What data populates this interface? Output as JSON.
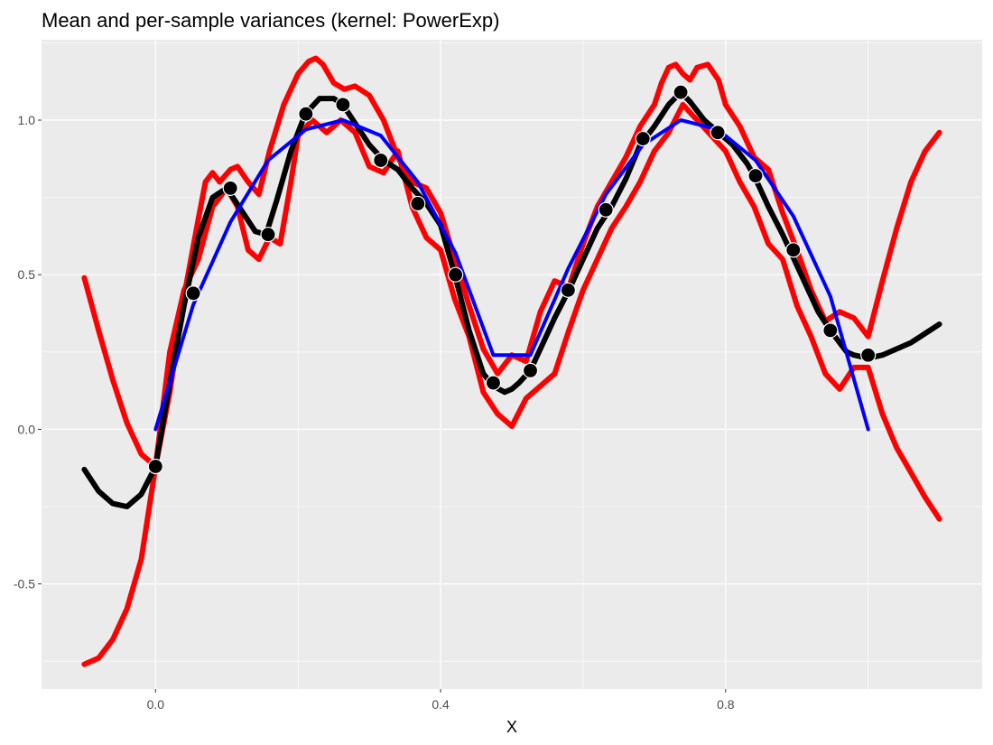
{
  "chart_data": {
    "type": "line",
    "title": "Mean and per-sample variances (kernel: PowerExp)",
    "xlabel": "X",
    "ylabel": "",
    "xlim": [
      -0.16,
      1.16
    ],
    "ylim": [
      -0.84,
      1.26
    ],
    "x_ticks": [
      0.0,
      0.4,
      0.8
    ],
    "x_tick_labels": [
      "0.0",
      "0.4",
      "0.8"
    ],
    "y_ticks": [
      -0.5,
      0.0,
      0.5,
      1.0
    ],
    "y_tick_labels": [
      "-0.5",
      "0.0",
      "0.5",
      "1.0"
    ],
    "grid": true,
    "legend": "none",
    "colors": {
      "panel": "#ebebeb",
      "grid": "#ffffff",
      "mean": "#000000",
      "variance_bounds": "#ff0000",
      "true_function": "#0000ff",
      "samples": "#000000"
    },
    "series": [
      {
        "key": "upper",
        "color": "#ff0000",
        "x": [
          -0.1,
          -0.08,
          -0.06,
          -0.04,
          -0.02,
          0.0,
          0.02,
          0.04,
          0.06,
          0.07,
          0.08,
          0.09,
          0.105,
          0.115,
          0.13,
          0.145,
          0.16,
          0.18,
          0.2,
          0.215,
          0.225,
          0.235,
          0.25,
          0.265,
          0.28,
          0.3,
          0.32,
          0.34,
          0.36,
          0.38,
          0.4,
          0.42,
          0.44,
          0.46,
          0.48,
          0.5,
          0.52,
          0.54,
          0.56,
          0.58,
          0.6,
          0.62,
          0.64,
          0.66,
          0.68,
          0.7,
          0.71,
          0.72,
          0.73,
          0.74,
          0.75,
          0.76,
          0.775,
          0.79,
          0.8,
          0.82,
          0.84,
          0.86,
          0.88,
          0.9,
          0.92,
          0.94,
          0.96,
          0.98,
          1.0,
          1.02,
          1.04,
          1.06,
          1.08,
          1.1
        ],
        "y": [
          0.49,
          0.32,
          0.16,
          0.02,
          -0.08,
          -0.12,
          0.12,
          0.43,
          0.68,
          0.8,
          0.83,
          0.8,
          0.84,
          0.85,
          0.8,
          0.76,
          0.9,
          1.05,
          1.15,
          1.19,
          1.2,
          1.18,
          1.12,
          1.1,
          1.11,
          1.08,
          1.0,
          0.88,
          0.8,
          0.78,
          0.7,
          0.55,
          0.4,
          0.26,
          0.18,
          0.24,
          0.22,
          0.38,
          0.48,
          0.46,
          0.6,
          0.72,
          0.8,
          0.88,
          0.98,
          1.05,
          1.12,
          1.17,
          1.18,
          1.15,
          1.13,
          1.17,
          1.18,
          1.13,
          1.05,
          0.98,
          0.88,
          0.84,
          0.7,
          0.58,
          0.45,
          0.35,
          0.38,
          0.36,
          0.3,
          0.48,
          0.65,
          0.8,
          0.9,
          0.96
        ]
      },
      {
        "key": "lower",
        "color": "#ff0000",
        "x": [
          -0.1,
          -0.08,
          -0.06,
          -0.04,
          -0.02,
          0.0,
          0.02,
          0.04,
          0.06,
          0.08,
          0.1,
          0.115,
          0.13,
          0.145,
          0.16,
          0.175,
          0.19,
          0.2,
          0.22,
          0.24,
          0.26,
          0.28,
          0.3,
          0.32,
          0.34,
          0.36,
          0.38,
          0.4,
          0.42,
          0.44,
          0.46,
          0.48,
          0.5,
          0.52,
          0.54,
          0.56,
          0.58,
          0.6,
          0.62,
          0.64,
          0.66,
          0.68,
          0.7,
          0.72,
          0.74,
          0.76,
          0.78,
          0.8,
          0.82,
          0.84,
          0.86,
          0.88,
          0.9,
          0.92,
          0.94,
          0.96,
          0.98,
          1.0,
          1.02,
          1.04,
          1.06,
          1.08,
          1.1
        ],
        "y": [
          -0.76,
          -0.74,
          -0.68,
          -0.58,
          -0.42,
          -0.12,
          0.25,
          0.45,
          0.55,
          0.72,
          0.78,
          0.72,
          0.58,
          0.55,
          0.62,
          0.6,
          0.8,
          0.95,
          1.0,
          0.96,
          1.0,
          0.96,
          0.85,
          0.83,
          0.9,
          0.72,
          0.62,
          0.58,
          0.42,
          0.3,
          0.12,
          0.05,
          0.01,
          0.1,
          0.14,
          0.18,
          0.32,
          0.45,
          0.55,
          0.65,
          0.72,
          0.8,
          0.9,
          0.96,
          1.05,
          1.0,
          0.95,
          0.9,
          0.8,
          0.72,
          0.6,
          0.55,
          0.4,
          0.3,
          0.18,
          0.13,
          0.2,
          0.2,
          0.05,
          -0.06,
          -0.14,
          -0.22,
          -0.29
        ]
      },
      {
        "key": "mean",
        "color": "#000000",
        "x": [
          -0.1,
          -0.08,
          -0.06,
          -0.04,
          -0.02,
          0.0,
          0.02,
          0.04,
          0.06,
          0.08,
          0.1,
          0.12,
          0.14,
          0.155,
          0.17,
          0.19,
          0.21,
          0.23,
          0.25,
          0.263,
          0.28,
          0.3,
          0.32,
          0.34,
          0.36,
          0.38,
          0.4,
          0.42,
          0.44,
          0.46,
          0.474,
          0.49,
          0.5,
          0.51,
          0.526,
          0.54,
          0.56,
          0.58,
          0.6,
          0.62,
          0.64,
          0.66,
          0.68,
          0.7,
          0.72,
          0.737,
          0.75,
          0.77,
          0.79,
          0.81,
          0.83,
          0.84,
          0.86,
          0.88,
          0.89,
          0.91,
          0.93,
          0.947,
          0.96,
          0.97,
          0.98,
          1.0,
          1.02,
          1.04,
          1.06,
          1.08,
          1.1
        ],
        "y": [
          -0.13,
          -0.2,
          -0.24,
          -0.25,
          -0.21,
          -0.12,
          0.15,
          0.4,
          0.62,
          0.75,
          0.78,
          0.71,
          0.64,
          0.63,
          0.74,
          0.9,
          1.02,
          1.07,
          1.07,
          1.05,
          0.99,
          0.92,
          0.87,
          0.84,
          0.78,
          0.73,
          0.66,
          0.5,
          0.32,
          0.18,
          0.14,
          0.12,
          0.13,
          0.15,
          0.19,
          0.26,
          0.36,
          0.45,
          0.55,
          0.65,
          0.72,
          0.81,
          0.92,
          0.98,
          1.05,
          1.09,
          1.06,
          1.0,
          0.96,
          0.92,
          0.86,
          0.82,
          0.72,
          0.63,
          0.58,
          0.48,
          0.38,
          0.32,
          0.28,
          0.25,
          0.24,
          0.23,
          0.24,
          0.26,
          0.28,
          0.31,
          0.34
        ]
      },
      {
        "key": "true",
        "color": "#0000ff",
        "x": [
          0.0,
          0.053,
          0.105,
          0.158,
          0.211,
          0.263,
          0.316,
          0.368,
          0.421,
          0.474,
          0.526,
          0.579,
          0.632,
          0.684,
          0.737,
          0.789,
          0.842,
          0.895,
          0.947,
          1.0
        ],
        "y": [
          0.0,
          0.403,
          0.67,
          0.87,
          0.97,
          1.0,
          0.95,
          0.8,
          0.57,
          0.24,
          0.24,
          0.52,
          0.76,
          0.92,
          1.0,
          0.97,
          0.87,
          0.69,
          0.43,
          0.0
        ]
      }
    ],
    "points": {
      "x": [
        0.0,
        0.053,
        0.105,
        0.158,
        0.211,
        0.263,
        0.316,
        0.368,
        0.421,
        0.474,
        0.526,
        0.579,
        0.632,
        0.684,
        0.737,
        0.789,
        0.842,
        0.895,
        0.947,
        1.0
      ],
      "y": [
        -0.12,
        0.44,
        0.78,
        0.63,
        1.02,
        1.05,
        0.87,
        0.73,
        0.5,
        0.15,
        0.19,
        0.45,
        0.71,
        0.94,
        1.09,
        0.96,
        0.82,
        0.58,
        0.32,
        0.24
      ]
    }
  }
}
